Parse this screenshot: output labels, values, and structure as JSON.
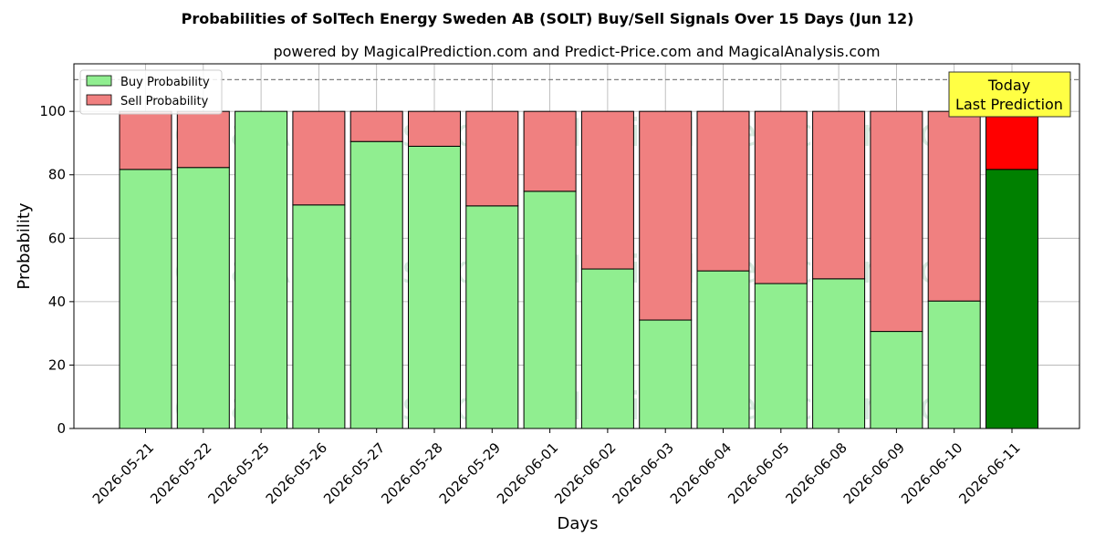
{
  "chart_data": {
    "type": "bar",
    "stacked": true,
    "title": "Probabilities of SolTech Energy Sweden AB (SOLT) Buy/Sell Signals Over 15 Days (Jun 12)",
    "subtitle": "powered by MagicalPrediction.com and Predict-Price.com and MagicalAnalysis.com",
    "xlabel": "Days",
    "ylabel": "Probability",
    "ylim": [
      0,
      115
    ],
    "yticks": [
      0,
      20,
      40,
      60,
      80,
      100
    ],
    "grid": true,
    "legend_placement": "top-left",
    "reference_line": 110,
    "categories": [
      "2026-05-21",
      "2026-05-22",
      "2026-05-25",
      "2026-05-26",
      "2026-05-27",
      "2026-05-28",
      "2026-05-29",
      "2026-06-01",
      "2026-06-02",
      "2026-06-03",
      "2026-06-04",
      "2026-06-05",
      "2026-06-08",
      "2026-06-09",
      "2026-06-10",
      "2026-06-11"
    ],
    "series": [
      {
        "name": "Buy Probability",
        "color": "#90ee90",
        "highlight_color": "#008000",
        "values": [
          81.7,
          82.3,
          100.0,
          70.5,
          90.5,
          89.0,
          70.2,
          74.8,
          50.3,
          34.2,
          49.7,
          45.7,
          47.2,
          30.6,
          40.2,
          81.7
        ]
      },
      {
        "name": "Sell Probability",
        "color": "#f08080",
        "highlight_color": "#ff0000",
        "values": [
          18.3,
          17.7,
          0.0,
          29.5,
          9.5,
          11.0,
          29.8,
          25.2,
          49.7,
          65.8,
          50.3,
          54.3,
          52.8,
          69.4,
          59.8,
          18.3
        ]
      }
    ],
    "annotation": {
      "lines": [
        "Today",
        "Last Prediction"
      ],
      "color": "#ffff44"
    },
    "watermark": {
      "texts": [
        "MagicalAnalysis.com",
        "MagicalPrediction.com"
      ]
    }
  }
}
